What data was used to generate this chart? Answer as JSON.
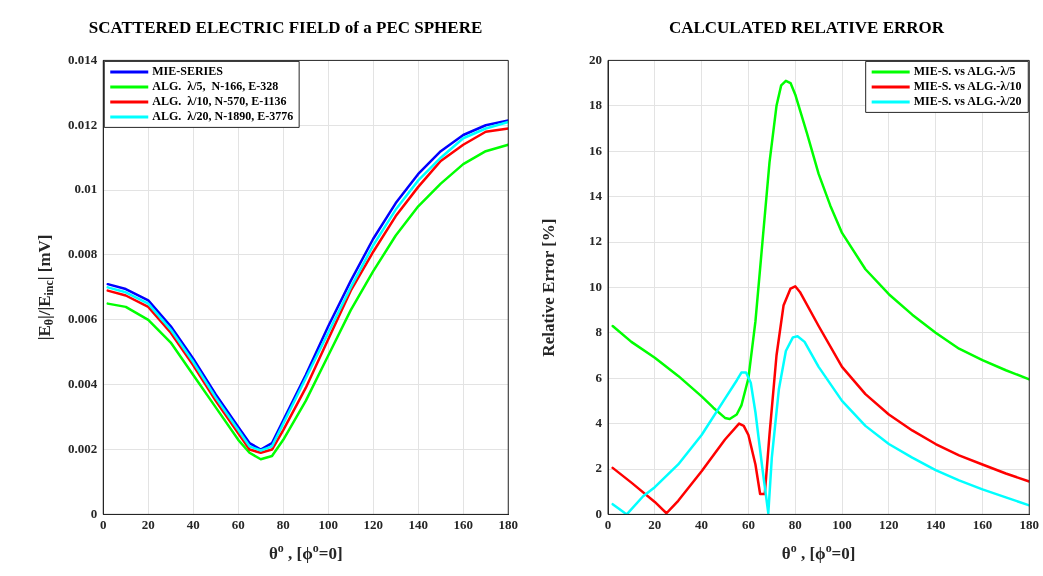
{
  "chart_data": [
    {
      "type": "line",
      "title": "SCATTERED ELECTRIC FIELD of a PEC SPHERE",
      "xlabel": "θ$^{o}$ , [ϕ$^{o}$=0]",
      "ylabel": "|E$_{θ}$|/|E$_{inc}$| [mV]",
      "xlim": [
        0,
        180
      ],
      "xticks": [
        0,
        20,
        40,
        60,
        80,
        100,
        120,
        140,
        160,
        180
      ],
      "ylim": [
        0,
        0.014
      ],
      "yticks": [
        0,
        0.002,
        0.004,
        0.006,
        0.008,
        0.01,
        0.012,
        0.014
      ],
      "grid": true,
      "legend": "top left",
      "marker": "none",
      "line_style": "solid",
      "series": [
        {
          "name": "MIE-SERIES",
          "color": "#0000ff",
          "x": [
            2,
            10,
            20,
            30,
            40,
            50,
            60,
            65,
            70,
            75,
            80,
            90,
            100,
            110,
            120,
            130,
            140,
            150,
            160,
            170,
            180
          ],
          "values": [
            0.0071,
            0.00695,
            0.0066,
            0.0058,
            0.0048,
            0.0037,
            0.0027,
            0.0022,
            0.002,
            0.0022,
            0.0029,
            0.0043,
            0.0058,
            0.0072,
            0.0085,
            0.0096,
            0.0105,
            0.0112,
            0.0117,
            0.012,
            0.01215
          ]
        },
        {
          "name": "ALG.  λ/5,  N-166, E-328",
          "color": "#00ff00",
          "x": [
            2,
            10,
            20,
            30,
            40,
            50,
            60,
            65,
            70,
            75,
            80,
            90,
            100,
            110,
            120,
            130,
            140,
            150,
            160,
            170,
            180
          ],
          "values": [
            0.0065,
            0.0064,
            0.006,
            0.0053,
            0.0043,
            0.0033,
            0.0023,
            0.0019,
            0.0017,
            0.0018,
            0.0023,
            0.0035,
            0.0049,
            0.0063,
            0.0075,
            0.0086,
            0.0095,
            0.0102,
            0.0108,
            0.0112,
            0.0114
          ]
        },
        {
          "name": "ALG.  λ/10, N-570, E-1136",
          "color": "#ff0000",
          "x": [
            2,
            10,
            20,
            30,
            40,
            50,
            60,
            65,
            70,
            75,
            80,
            90,
            100,
            110,
            120,
            130,
            140,
            150,
            160,
            170,
            180
          ],
          "values": [
            0.0069,
            0.00675,
            0.0064,
            0.0056,
            0.0046,
            0.0035,
            0.0025,
            0.002,
            0.0019,
            0.002,
            0.0026,
            0.0039,
            0.0054,
            0.0069,
            0.0081,
            0.0092,
            0.0101,
            0.0109,
            0.0114,
            0.0118,
            0.0119
          ]
        },
        {
          "name": "ALG.  λ/20, N-1890, E-3776",
          "color": "#00ffff",
          "x": [
            2,
            10,
            20,
            30,
            40,
            50,
            60,
            65,
            70,
            75,
            80,
            90,
            100,
            110,
            120,
            130,
            140,
            150,
            160,
            170,
            180
          ],
          "values": [
            0.007,
            0.00685,
            0.0065,
            0.0057,
            0.0047,
            0.0036,
            0.0026,
            0.0021,
            0.00197,
            0.0021,
            0.0028,
            0.0042,
            0.0056,
            0.007,
            0.0083,
            0.0094,
            0.0103,
            0.011,
            0.0116,
            0.0119,
            0.0121
          ]
        }
      ]
    },
    {
      "type": "line",
      "title": "CALCULATED RELATIVE ERROR",
      "xlabel": "θ$^{o}$ , [ϕ$^{o}$=0]",
      "ylabel": "Relative Error [%]",
      "xlim": [
        0,
        180
      ],
      "xticks": [
        0,
        20,
        40,
        60,
        80,
        100,
        120,
        140,
        160,
        180
      ],
      "ylim": [
        0,
        20
      ],
      "yticks": [
        0,
        2,
        4,
        6,
        8,
        10,
        12,
        14,
        16,
        18,
        20
      ],
      "grid": true,
      "legend": "top right",
      "marker": "none",
      "line_style": "solid",
      "series": [
        {
          "name": "MIE-S. vs ALG.-λ/5",
          "color": "#00ff00",
          "x": [
            2,
            10,
            20,
            30,
            40,
            45,
            50,
            52,
            55,
            57,
            60,
            63,
            66,
            69,
            72,
            74,
            76,
            78,
            80,
            85,
            90,
            95,
            100,
            110,
            120,
            130,
            140,
            150,
            160,
            170,
            180
          ],
          "values": [
            8.3,
            7.6,
            6.9,
            6.1,
            5.2,
            4.7,
            4.25,
            4.2,
            4.4,
            4.8,
            6,
            8.5,
            12,
            15.5,
            18,
            18.9,
            19.1,
            19,
            18.5,
            16.8,
            15,
            13.6,
            12.4,
            10.8,
            9.7,
            8.8,
            8,
            7.3,
            6.8,
            6.35,
            5.95
          ]
        },
        {
          "name": "MIE-S. vs ALG.-λ/10",
          "color": "#ff0000",
          "x": [
            2,
            10,
            20,
            25,
            30,
            40,
            50,
            56,
            58,
            60,
            63,
            65,
            67,
            69,
            72,
            75,
            78,
            80,
            82,
            90,
            100,
            110,
            120,
            130,
            140,
            150,
            160,
            170,
            180
          ],
          "values": [
            2.05,
            1.4,
            0.55,
            0.05,
            0.6,
            1.9,
            3.3,
            4,
            3.9,
            3.5,
            2.2,
            0.9,
            0.9,
            3.5,
            7,
            9.2,
            9.95,
            10.05,
            9.8,
            8.3,
            6.5,
            5.3,
            4.4,
            3.7,
            3.1,
            2.6,
            2.2,
            1.8,
            1.45
          ]
        },
        {
          "name": "MIE-S. vs ALG.-λ/20",
          "color": "#00ffff",
          "x": [
            2,
            8,
            15,
            20,
            30,
            40,
            50,
            55,
            57,
            59,
            61,
            63,
            66,
            68.5,
            70,
            73,
            76,
            79,
            81,
            84,
            90,
            100,
            110,
            120,
            130,
            140,
            150,
            160,
            170,
            180
          ],
          "values": [
            0.45,
            0,
            0.8,
            1.2,
            2.2,
            3.5,
            5.1,
            5.9,
            6.25,
            6.25,
            5.8,
            4.5,
            2,
            0.05,
            2.5,
            5.5,
            7.2,
            7.8,
            7.85,
            7.6,
            6.5,
            5,
            3.9,
            3.1,
            2.5,
            1.95,
            1.5,
            1.1,
            0.75,
            0.4
          ]
        }
      ]
    }
  ]
}
